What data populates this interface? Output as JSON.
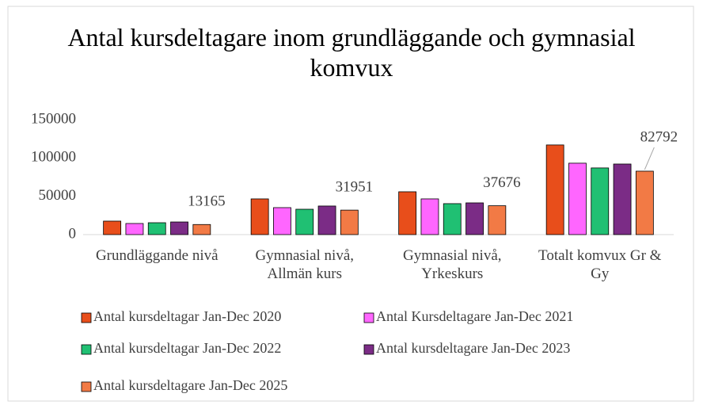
{
  "chart_data": {
    "type": "bar",
    "title": "Antal kursdeltagare inom grundläggande och gymnasial komvux",
    "categories": [
      "Grundläggande nivå",
      "Gymnasial nivå, Allmän kurs",
      "Gymnasial nivå, Yrkeskurs",
      "Totalt komvux Gr & Gy"
    ],
    "series": [
      {
        "name": "Antal kursdeltagar Jan-Dec 2020",
        "color": "#e84e1b",
        "values": [
          17600,
          46600,
          55900,
          117000
        ]
      },
      {
        "name": "Antal Kursdeltagare Jan-Dec 2021",
        "color": "#ff66ff",
        "values": [
          14500,
          35200,
          46600,
          93200
        ]
      },
      {
        "name": "Antal kursdeltagar Jan-Dec 2022",
        "color": "#20c073",
        "values": [
          15500,
          33100,
          40400,
          87000
        ]
      },
      {
        "name": "Antal kursdeltagare Jan-Dec 2023",
        "color": "#7b2c86",
        "values": [
          16500,
          37300,
          41400,
          92100
        ]
      },
      {
        "name": "Antal kursdeltagare Jan-Dec 2025",
        "color": "#f27a45",
        "values": [
          13165,
          31951,
          37676,
          82792
        ],
        "show_labels": true
      }
    ],
    "ylim": [
      0,
      150000
    ],
    "yticks": [
      0,
      50000,
      100000,
      150000
    ],
    "grid": false,
    "legend": "bottom"
  }
}
